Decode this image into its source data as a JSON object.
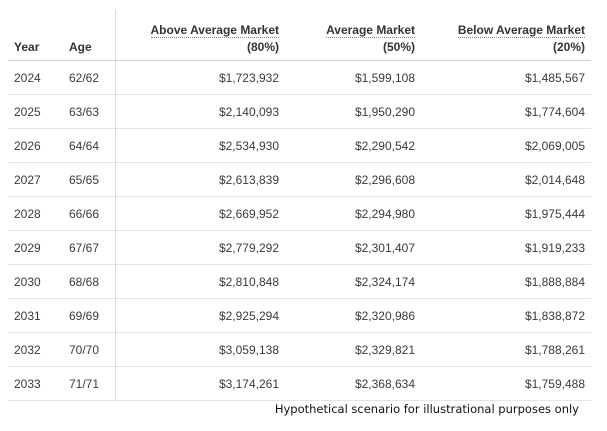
{
  "table": {
    "headers": {
      "year": "Year",
      "age": "Age",
      "above_title": "Above Average Market",
      "above_sub": "(80%)",
      "avg_title": "Average Market",
      "avg_sub": "(50%)",
      "below_title": "Below Average Market",
      "below_sub": "(20%)"
    },
    "rows": [
      {
        "year": "2024",
        "age": "62/62",
        "above": "$1,723,932",
        "average": "$1,599,108",
        "below": "$1,485,567"
      },
      {
        "year": "2025",
        "age": "63/63",
        "above": "$2,140,093",
        "average": "$1,950,290",
        "below": "$1,774,604"
      },
      {
        "year": "2026",
        "age": "64/64",
        "above": "$2,534,930",
        "average": "$2,290,542",
        "below": "$2,069,005"
      },
      {
        "year": "2027",
        "age": "65/65",
        "above": "$2,613,839",
        "average": "$2,296,608",
        "below": "$2,014,648"
      },
      {
        "year": "2028",
        "age": "66/66",
        "above": "$2,669,952",
        "average": "$2,294,980",
        "below": "$1,975,444"
      },
      {
        "year": "2029",
        "age": "67/67",
        "above": "$2,779,292",
        "average": "$2,301,407",
        "below": "$1,919,233"
      },
      {
        "year": "2030",
        "age": "68/68",
        "above": "$2,810,848",
        "average": "$2,324,174",
        "below": "$1,888,884"
      },
      {
        "year": "2031",
        "age": "69/69",
        "above": "$2,925,294",
        "average": "$2,320,986",
        "below": "$1,838,872"
      },
      {
        "year": "2032",
        "age": "70/70",
        "above": "$3,059,138",
        "average": "$2,329,821",
        "below": "$1,788,261"
      },
      {
        "year": "2033",
        "age": "71/71",
        "above": "$3,174,261",
        "average": "$2,368,634",
        "below": "$1,759,488"
      }
    ]
  },
  "footnote": "Hypothetical scenario for illustrational purposes only"
}
